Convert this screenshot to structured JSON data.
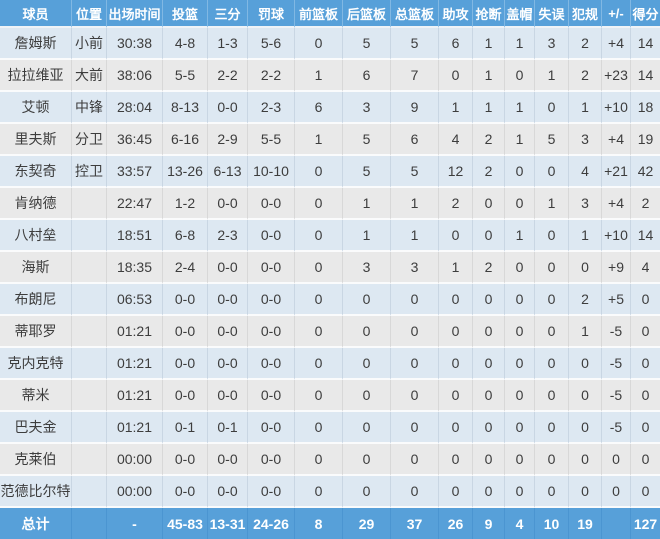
{
  "colors": {
    "header_bg": "#57a0d9",
    "total_bg": "#57a0d9",
    "row_blue": "#dde8f2",
    "row_gray": "#e9e9e9",
    "text": "#3d3d3d",
    "header_text": "#ffffff",
    "red_player_name": "#e3493f"
  },
  "table": {
    "columns": [
      "球员",
      "位置",
      "出场时间",
      "投篮",
      "三分",
      "罚球",
      "前篮板",
      "后篮板",
      "总篮板",
      "助攻",
      "抢断",
      "盖帽",
      "失误",
      "犯规",
      "+/-",
      "得分"
    ],
    "rows": [
      {
        "red": false,
        "cells": [
          "詹姆斯",
          "小前",
          "30:38",
          "4-8",
          "1-3",
          "5-6",
          "0",
          "5",
          "5",
          "6",
          "1",
          "1",
          "3",
          "2",
          "+4",
          "14"
        ]
      },
      {
        "red": false,
        "cells": [
          "拉拉维亚",
          "大前",
          "38:06",
          "5-5",
          "2-2",
          "2-2",
          "1",
          "6",
          "7",
          "0",
          "1",
          "0",
          "1",
          "2",
          "+23",
          "14"
        ]
      },
      {
        "red": false,
        "cells": [
          "艾顿",
          "中锋",
          "28:04",
          "8-13",
          "0-0",
          "2-3",
          "6",
          "3",
          "9",
          "1",
          "1",
          "1",
          "0",
          "1",
          "+10",
          "18"
        ]
      },
      {
        "red": false,
        "cells": [
          "里夫斯",
          "分卫",
          "36:45",
          "6-16",
          "2-9",
          "5-5",
          "1",
          "5",
          "6",
          "4",
          "2",
          "1",
          "5",
          "3",
          "+4",
          "19"
        ]
      },
      {
        "red": false,
        "cells": [
          "东契奇",
          "控卫",
          "33:57",
          "13-26",
          "6-13",
          "10-10",
          "0",
          "5",
          "5",
          "12",
          "2",
          "0",
          "0",
          "4",
          "+21",
          "42"
        ]
      },
      {
        "red": false,
        "cells": [
          "肯纳德",
          "",
          "22:47",
          "1-2",
          "0-0",
          "0-0",
          "0",
          "1",
          "1",
          "2",
          "0",
          "0",
          "1",
          "3",
          "+4",
          "2"
        ]
      },
      {
        "red": false,
        "cells": [
          "八村垒",
          "",
          "18:51",
          "6-8",
          "2-3",
          "0-0",
          "0",
          "1",
          "1",
          "0",
          "0",
          "1",
          "0",
          "1",
          "+10",
          "14"
        ]
      },
      {
        "red": false,
        "cells": [
          "海斯",
          "",
          "18:35",
          "2-4",
          "0-0",
          "0-0",
          "0",
          "3",
          "3",
          "1",
          "2",
          "0",
          "0",
          "0",
          "+9",
          "4"
        ]
      },
      {
        "red": true,
        "cells": [
          "布朗尼",
          "",
          "06:53",
          "0-0",
          "0-0",
          "0-0",
          "0",
          "0",
          "0",
          "0",
          "0",
          "0",
          "0",
          "2",
          "+5",
          "0"
        ]
      },
      {
        "red": true,
        "cells": [
          "蒂耶罗",
          "",
          "01:21",
          "0-0",
          "0-0",
          "0-0",
          "0",
          "0",
          "0",
          "0",
          "0",
          "0",
          "0",
          "1",
          "-5",
          "0"
        ]
      },
      {
        "red": true,
        "cells": [
          "克内克特",
          "",
          "01:21",
          "0-0",
          "0-0",
          "0-0",
          "0",
          "0",
          "0",
          "0",
          "0",
          "0",
          "0",
          "0",
          "-5",
          "0"
        ]
      },
      {
        "red": true,
        "cells": [
          "蒂米",
          "",
          "01:21",
          "0-0",
          "0-0",
          "0-0",
          "0",
          "0",
          "0",
          "0",
          "0",
          "0",
          "0",
          "0",
          "-5",
          "0"
        ]
      },
      {
        "red": true,
        "cells": [
          "巴夫金",
          "",
          "01:21",
          "0-1",
          "0-1",
          "0-0",
          "0",
          "0",
          "0",
          "0",
          "0",
          "0",
          "0",
          "0",
          "-5",
          "0"
        ]
      },
      {
        "red": false,
        "cells": [
          "克莱伯",
          "",
          "00:00",
          "0-0",
          "0-0",
          "0-0",
          "0",
          "0",
          "0",
          "0",
          "0",
          "0",
          "0",
          "0",
          "0",
          "0"
        ]
      },
      {
        "red": false,
        "cells": [
          "范德比尔特",
          "",
          "00:00",
          "0-0",
          "0-0",
          "0-0",
          "0",
          "0",
          "0",
          "0",
          "0",
          "0",
          "0",
          "0",
          "0",
          "0"
        ]
      }
    ],
    "total": {
      "cells": [
        "总计",
        "",
        "-",
        "45-83",
        "13-31",
        "24-26",
        "8",
        "29",
        "37",
        "26",
        "9",
        "4",
        "10",
        "19",
        "",
        "127"
      ]
    }
  }
}
